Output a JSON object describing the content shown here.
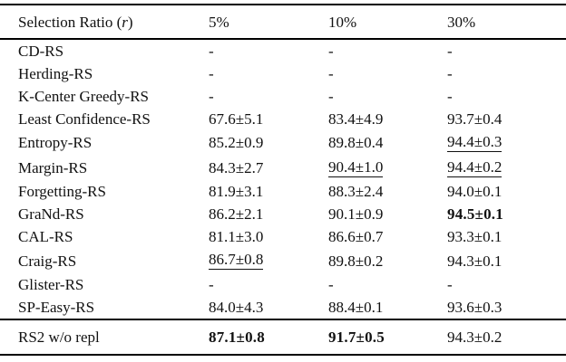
{
  "colors": {
    "background": "#ffffff",
    "text": "#111111",
    "rule": "#000000"
  },
  "table": {
    "header": {
      "method_prefix": "Selection Ratio (",
      "method_var": "r",
      "method_suffix": ")",
      "ratios": [
        "5%",
        "10%",
        "30%"
      ]
    },
    "rows": [
      {
        "method": "CD-RS",
        "cells": [
          {
            "text": "-",
            "style": "normal"
          },
          {
            "text": "-",
            "style": "normal"
          },
          {
            "text": "-",
            "style": "normal"
          }
        ]
      },
      {
        "method": "Herding-RS",
        "cells": [
          {
            "text": "-",
            "style": "normal"
          },
          {
            "text": "-",
            "style": "normal"
          },
          {
            "text": "-",
            "style": "normal"
          }
        ]
      },
      {
        "method": "K-Center Greedy-RS",
        "cells": [
          {
            "text": "-",
            "style": "normal"
          },
          {
            "text": "-",
            "style": "normal"
          },
          {
            "text": "-",
            "style": "normal"
          }
        ]
      },
      {
        "method": "Least Confidence-RS",
        "cells": [
          {
            "text": "67.6±5.1",
            "style": "normal"
          },
          {
            "text": "83.4±4.9",
            "style": "normal"
          },
          {
            "text": "93.7±0.4",
            "style": "normal"
          }
        ]
      },
      {
        "method": "Entropy-RS",
        "cells": [
          {
            "text": "85.2±0.9",
            "style": "normal"
          },
          {
            "text": "89.8±0.4",
            "style": "normal"
          },
          {
            "text": "94.4±0.3",
            "style": "underline"
          }
        ]
      },
      {
        "method": "Margin-RS",
        "cells": [
          {
            "text": "84.3±2.7",
            "style": "normal"
          },
          {
            "text": "90.4±1.0",
            "style": "underline"
          },
          {
            "text": "94.4±0.2",
            "style": "underline"
          }
        ]
      },
      {
        "method": "Forgetting-RS",
        "cells": [
          {
            "text": "81.9±3.1",
            "style": "normal"
          },
          {
            "text": "88.3±2.4",
            "style": "normal"
          },
          {
            "text": "94.0±0.1",
            "style": "normal"
          }
        ]
      },
      {
        "method": "GraNd-RS",
        "cells": [
          {
            "text": "86.2±2.1",
            "style": "normal"
          },
          {
            "text": "90.1±0.9",
            "style": "normal"
          },
          {
            "text": "94.5±0.1",
            "style": "bold"
          }
        ]
      },
      {
        "method": "CAL-RS",
        "cells": [
          {
            "text": "81.1±3.0",
            "style": "normal"
          },
          {
            "text": "86.6±0.7",
            "style": "normal"
          },
          {
            "text": "93.3±0.1",
            "style": "normal"
          }
        ]
      },
      {
        "method": "Craig-RS",
        "cells": [
          {
            "text": "86.7±0.8",
            "style": "underline"
          },
          {
            "text": "89.8±0.2",
            "style": "normal"
          },
          {
            "text": "94.3±0.1",
            "style": "normal"
          }
        ]
      },
      {
        "method": "Glister-RS",
        "cells": [
          {
            "text": "-",
            "style": "normal"
          },
          {
            "text": "-",
            "style": "normal"
          },
          {
            "text": "-",
            "style": "normal"
          }
        ]
      },
      {
        "method": "SP-Easy-RS",
        "cells": [
          {
            "text": "84.0±4.3",
            "style": "normal"
          },
          {
            "text": "88.4±0.1",
            "style": "normal"
          },
          {
            "text": "93.6±0.3",
            "style": "normal"
          }
        ]
      }
    ],
    "footer": {
      "method": "RS2 w/o repl",
      "cells": [
        {
          "text": "87.1±0.8",
          "style": "bold"
        },
        {
          "text": "91.7±0.5",
          "style": "bold"
        },
        {
          "text": "94.3±0.2",
          "style": "normal"
        }
      ]
    }
  }
}
